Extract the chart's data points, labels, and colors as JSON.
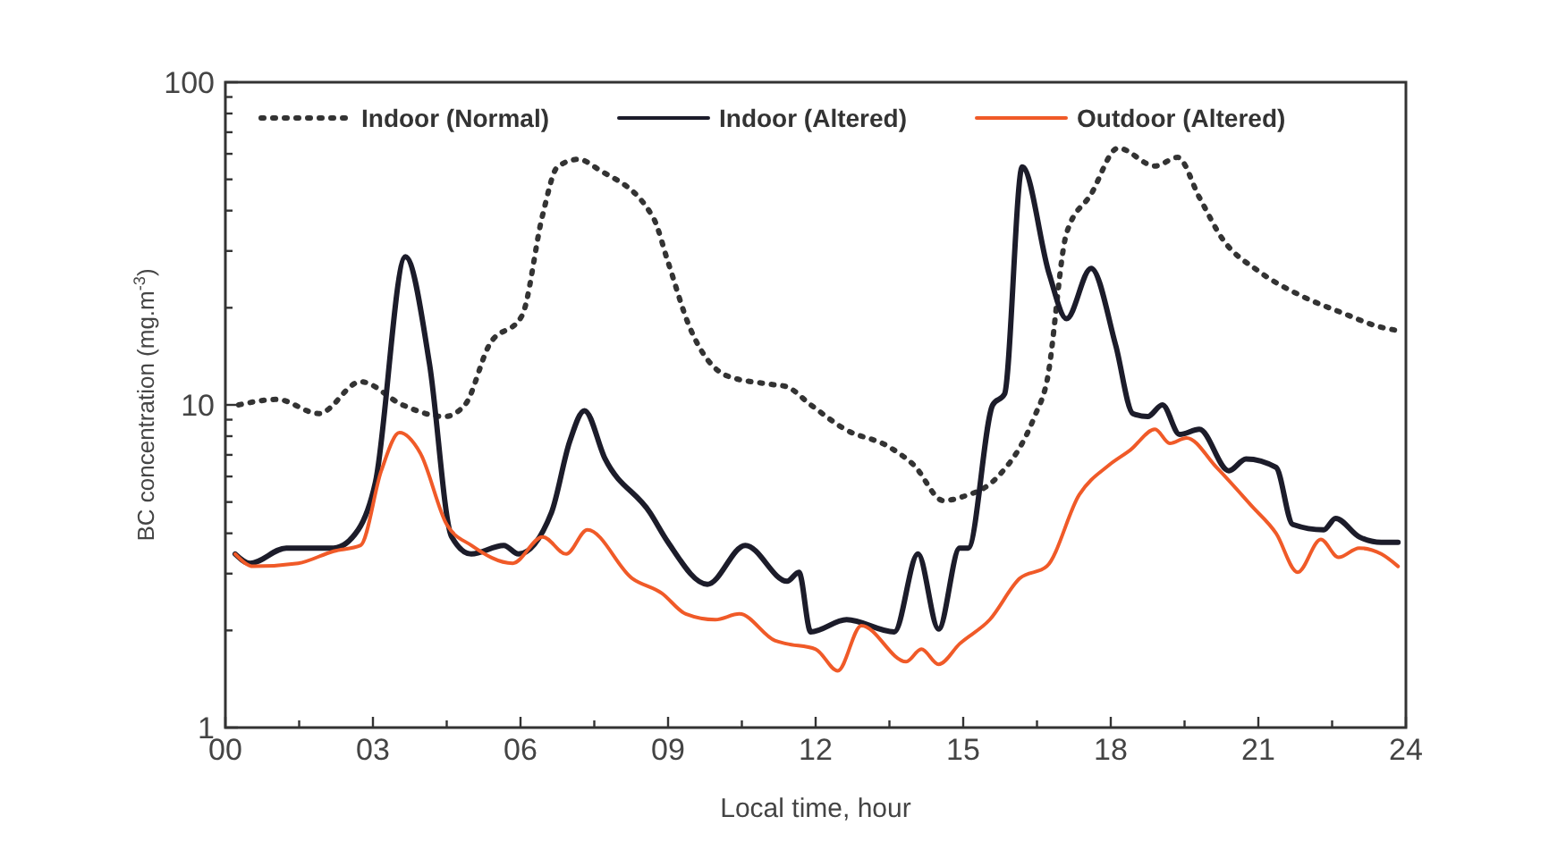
{
  "chart_data": {
    "type": "line",
    "xlabel": "Local time, hour",
    "ylabel": "BC concentration (mg.m$^{-3}$)",
    "log": "y",
    "legend": "top left",
    "grid": false,
    "xlim": [
      0,
      24
    ],
    "xticks": [
      {
        "value": 0,
        "label": "00"
      },
      {
        "value": 1.5,
        "label": null
      },
      {
        "value": 3,
        "label": "03"
      },
      {
        "value": 4.5,
        "label": null
      },
      {
        "value": 6,
        "label": "06"
      },
      {
        "value": 7.5,
        "label": null
      },
      {
        "value": 9,
        "label": "09"
      },
      {
        "value": 10.5,
        "label": null
      },
      {
        "value": 12,
        "label": "12"
      },
      {
        "value": 13.5,
        "label": null
      },
      {
        "value": 15,
        "label": "15"
      },
      {
        "value": 16.5,
        "label": null
      },
      {
        "value": 18,
        "label": "18"
      },
      {
        "value": 19.5,
        "label": null
      },
      {
        "value": 21,
        "label": "21"
      },
      {
        "value": 22.5,
        "label": null
      },
      {
        "value": 24,
        "label": "24"
      }
    ],
    "ylim": [
      1,
      100
    ],
    "yticks": [
      1,
      {
        "value": 2,
        "label": null
      },
      {
        "value": 3,
        "label": null
      },
      {
        "value": 4,
        "label": null
      },
      {
        "value": 5,
        "label": null
      },
      {
        "value": 6,
        "label": null
      },
      {
        "value": 7,
        "label": null
      },
      {
        "value": 8,
        "label": null
      },
      {
        "value": 9,
        "label": null
      },
      10,
      {
        "value": 20,
        "label": null
      },
      {
        "value": 30,
        "label": null
      },
      {
        "value": 40,
        "label": null
      },
      {
        "value": 50,
        "label": null
      },
      {
        "value": 60,
        "label": null
      },
      {
        "value": 70,
        "label": null
      },
      {
        "value": 80,
        "label": null
      },
      {
        "value": 90,
        "label": null
      },
      100
    ],
    "series": [
      {
        "name": "Indoor (Normal)",
        "color": "#333333",
        "line_style": "dotted",
        "x": [
          0.27,
          1.05,
          1.9,
          2.75,
          3.6,
          4.45,
          4.87,
          5.36,
          6.03,
          6.45,
          6.75,
          7.18,
          7.6,
          8.7,
          9.0,
          9.42,
          10.2,
          11.05,
          11.4,
          11.9,
          12.6,
          13.5,
          14.0,
          14.6,
          15.0,
          15.66,
          16.45,
          16.7,
          17.1,
          17.6,
          18.15,
          18.9,
          19.36,
          19.8,
          20.27,
          21.0,
          21.84,
          22.7,
          23.5,
          23.84
        ],
        "values": [
          10,
          10.4,
          9.4,
          11.8,
          10,
          9.2,
          10,
          15.3,
          18.9,
          38.8,
          54.6,
          57.7,
          53.5,
          38,
          27.7,
          17.7,
          12.3,
          11.6,
          11.4,
          10,
          8.4,
          7.4,
          6.5,
          5.05,
          5.2,
          5.9,
          9.2,
          11.8,
          34,
          45,
          62.5,
          55,
          58.5,
          44,
          32.7,
          26,
          21.9,
          19.3,
          17.4,
          17
        ]
      },
      {
        "name": "Indoor (Altered)",
        "color": "#1c1c2a",
        "line_style": "solid",
        "x": [
          0.2,
          0.5,
          1.24,
          2.2,
          2.7,
          3.05,
          3.66,
          4.15,
          4.6,
          5.0,
          5.66,
          5.96,
          6.63,
          7.0,
          7.3,
          7.72,
          8.63,
          9.0,
          9.8,
          10.57,
          11.42,
          11.66,
          11.9,
          12.63,
          13.6,
          14.08,
          14.5,
          14.93,
          15.1,
          15.6,
          15.84,
          16.2,
          16.75,
          17.1,
          17.6,
          18.1,
          18.45,
          18.75,
          19.05,
          19.4,
          19.8,
          20.4,
          20.75,
          21.36,
          21.7,
          22.33,
          22.57,
          23.05,
          23.5,
          23.84
        ],
        "values": [
          3.45,
          3.23,
          3.6,
          3.6,
          4.1,
          5.75,
          28.8,
          13.4,
          3.9,
          3.45,
          3.67,
          3.45,
          4.64,
          7.7,
          9.6,
          6.8,
          4.64,
          3.75,
          2.78,
          3.67,
          2.84,
          3.03,
          1.98,
          2.16,
          1.98,
          3.45,
          2.02,
          3.6,
          3.6,
          10,
          10.8,
          54.6,
          25.4,
          18.5,
          26.5,
          15.3,
          9.4,
          9.2,
          10,
          8.1,
          8.4,
          6.25,
          6.8,
          6.4,
          4.26,
          4.1,
          4.45,
          3.9,
          3.75,
          3.75
        ]
      },
      {
        "name": "Outdoor (Altered)",
        "color": "#f05a28",
        "line_style": "solid",
        "x": [
          0.2,
          0.57,
          1.48,
          2.2,
          2.75,
          3.17,
          3.54,
          3.96,
          4.5,
          5.0,
          5.84,
          6.45,
          6.93,
          7.36,
          8.27,
          8.87,
          9.36,
          9.96,
          10.45,
          11.17,
          11.4,
          12.0,
          12.45,
          12.93,
          13.84,
          14.15,
          14.5,
          14.93,
          15.54,
          16.15,
          16.7,
          17.36,
          17.96,
          18.4,
          18.9,
          19.2,
          19.54,
          20.15,
          20.87,
          21.36,
          21.8,
          22.27,
          22.63,
          23.05,
          23.5,
          23.84
        ],
        "values": [
          3.45,
          3.16,
          3.23,
          3.52,
          3.67,
          6.25,
          8.2,
          7.1,
          4.26,
          3.67,
          3.23,
          3.9,
          3.45,
          4.1,
          2.9,
          2.61,
          2.25,
          2.16,
          2.25,
          1.86,
          1.82,
          1.75,
          1.5,
          2.07,
          1.6,
          1.75,
          1.57,
          1.82,
          2.16,
          2.9,
          3.16,
          5.27,
          6.5,
          7.25,
          8.4,
          7.6,
          7.9,
          6.4,
          4.85,
          4.0,
          3.03,
          3.83,
          3.37,
          3.6,
          3.45,
          3.16
        ]
      }
    ]
  }
}
